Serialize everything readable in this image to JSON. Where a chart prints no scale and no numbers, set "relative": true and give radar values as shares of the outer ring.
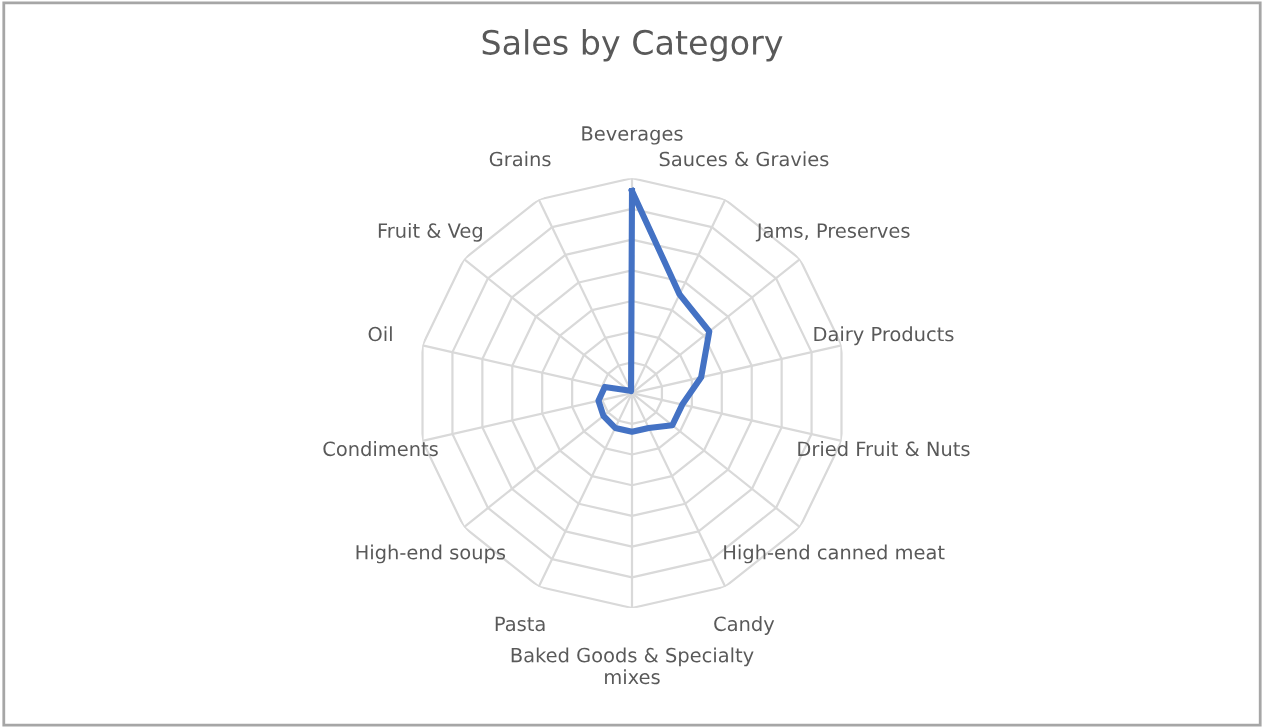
{
  "chart_data": {
    "type": "radar",
    "title": "Sales by Category",
    "relative": true,
    "grid": true,
    "categories": [
      "Beverages",
      "Sauces & Gravies",
      "Jams, Preserves",
      "Dairy Products",
      "Dried Fruit & Nuts",
      "High-end canned meat",
      "Candy",
      "Baked Goods & Specialty\nmixes",
      "Pasta",
      "High-end soups",
      "Condiments",
      "Oil",
      "Fruit & Veg",
      "Grains"
    ],
    "series": [
      {
        "color": "#4472c4",
        "values": [
          0.94,
          0.51,
          0.46,
          0.33,
          0.24,
          0.24,
          0.18,
          0.18,
          0.18,
          0.17,
          0.16,
          0.13,
          0.02,
          0.01
        ]
      }
    ]
  }
}
